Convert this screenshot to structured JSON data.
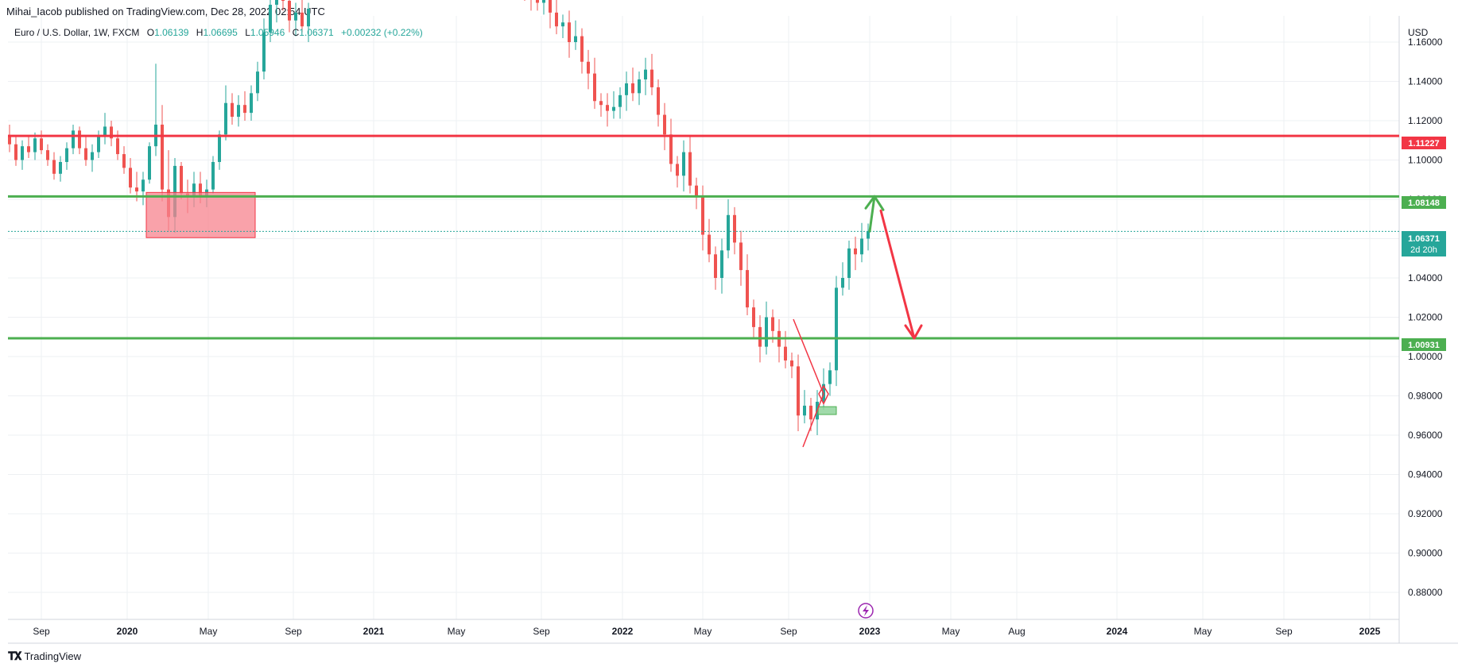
{
  "header": {
    "published": "Mihai_Iacob published on TradingView.com, Dec 28, 2022 02:54 UTC"
  },
  "legend": {
    "symbol": "Euro / U.S. Dollar, 1W, FXCM",
    "o_label": "O",
    "o": "1.06139",
    "h_label": "H",
    "h": "1.06695",
    "l_label": "L",
    "l": "1.05946",
    "c_label": "C",
    "c": "1.06371",
    "change": "+0.00232 (+0.22%)"
  },
  "axis": {
    "currency": "USD",
    "y_ticks": [
      "1.16000",
      "1.14000",
      "1.12000",
      "1.10000",
      "1.08000",
      "1.06000",
      "1.04000",
      "1.02000",
      "1.00000",
      "0.98000",
      "0.96000",
      "0.94000",
      "0.92000",
      "0.90000",
      "0.88000"
    ],
    "x_ticks": [
      "Sep",
      "2020",
      "May",
      "Sep",
      "2021",
      "May",
      "Sep",
      "2022",
      "May",
      "Sep",
      "2023",
      "May",
      "Aug",
      "2024",
      "May",
      "Sep",
      "2025"
    ]
  },
  "price_labels": {
    "red_line": "1.11227",
    "green_top": "1.08148",
    "current": "1.06371",
    "countdown": "2d 20h",
    "green_bottom": "1.00931"
  },
  "colors": {
    "up": "#26a69a",
    "down": "#ef5350",
    "red_line": "#f23645",
    "green_line": "#4caf50",
    "grid": "#eef0f3",
    "text": "#131722"
  },
  "footer": {
    "brand": "TradingView",
    "logo": "tradingview-logo-icon"
  },
  "event_icon": "lightning-icon",
  "chart_data": {
    "type": "candlestick",
    "title": "Euro / U.S. Dollar, 1W, FXCM",
    "ylabel": "USD",
    "ylim": [
      0.87,
      1.17
    ],
    "levels": [
      1.11227,
      1.08148,
      1.00931
    ],
    "current_price": 1.06371,
    "zones": [
      {
        "name": "supply-zone",
        "from": "2020-01",
        "to": "2020-07",
        "price_low": 1.0605,
        "price_high": 1.0835
      },
      {
        "name": "demand-zone",
        "from": "2022-10",
        "to": "2022-11",
        "price_low": 0.9705,
        "price_high": 0.9745
      }
    ],
    "projection": [
      {
        "date": "2022-12",
        "price": 1.0637
      },
      {
        "date": "2023-01",
        "price": 1.0815
      },
      {
        "date": "2023-03",
        "price": 1.0093
      }
    ],
    "candles_weekly": [
      [
        1.112,
        1.118,
        1.104,
        1.108
      ],
      [
        1.108,
        1.112,
        1.097,
        1.1
      ],
      [
        1.1,
        1.11,
        1.095,
        1.107
      ],
      [
        1.107,
        1.112,
        1.101,
        1.104
      ],
      [
        1.104,
        1.114,
        1.1,
        1.111
      ],
      [
        1.111,
        1.115,
        1.103,
        1.105
      ],
      [
        1.105,
        1.108,
        1.097,
        1.1
      ],
      [
        1.1,
        1.104,
        1.09,
        1.093
      ],
      [
        1.093,
        1.102,
        1.089,
        1.099
      ],
      [
        1.099,
        1.109,
        1.095,
        1.106
      ],
      [
        1.106,
        1.118,
        1.103,
        1.115
      ],
      [
        1.115,
        1.117,
        1.103,
        1.106
      ],
      [
        1.106,
        1.112,
        1.097,
        1.1
      ],
      [
        1.1,
        1.108,
        1.094,
        1.104
      ],
      [
        1.104,
        1.115,
        1.101,
        1.112
      ],
      [
        1.112,
        1.124,
        1.108,
        1.117
      ],
      [
        1.117,
        1.12,
        1.107,
        1.111
      ],
      [
        1.111,
        1.115,
        1.1,
        1.103
      ],
      [
        1.103,
        1.107,
        1.093,
        1.096
      ],
      [
        1.096,
        1.101,
        1.083,
        1.086
      ],
      [
        1.086,
        1.094,
        1.079,
        1.084
      ],
      [
        1.084,
        1.094,
        1.077,
        1.09
      ],
      [
        1.09,
        1.109,
        1.088,
        1.107
      ],
      [
        1.107,
        1.149,
        1.102,
        1.118
      ],
      [
        1.118,
        1.128,
        1.079,
        1.085
      ],
      [
        1.085,
        1.105,
        1.064,
        1.071
      ],
      [
        1.071,
        1.101,
        1.063,
        1.097
      ],
      [
        1.097,
        1.099,
        1.08,
        1.083
      ],
      [
        1.083,
        1.09,
        1.073,
        1.082
      ],
      [
        1.082,
        1.094,
        1.076,
        1.088
      ],
      [
        1.088,
        1.094,
        1.078,
        1.081
      ],
      [
        1.081,
        1.09,
        1.076,
        1.085
      ],
      [
        1.085,
        1.102,
        1.083,
        1.099
      ],
      [
        1.099,
        1.115,
        1.095,
        1.113
      ],
      [
        1.113,
        1.138,
        1.11,
        1.129
      ],
      [
        1.129,
        1.134,
        1.118,
        1.122
      ],
      [
        1.122,
        1.133,
        1.117,
        1.128
      ],
      [
        1.128,
        1.135,
        1.12,
        1.124
      ],
      [
        1.124,
        1.138,
        1.12,
        1.134
      ],
      [
        1.134,
        1.15,
        1.13,
        1.145
      ],
      [
        1.145,
        1.172,
        1.141,
        1.165
      ],
      [
        1.165,
        1.188,
        1.16,
        1.179
      ],
      [
        1.179,
        1.19,
        1.17,
        1.184
      ],
      [
        1.184,
        1.196,
        1.176,
        1.181
      ],
      [
        1.181,
        1.186,
        1.165,
        1.171
      ],
      [
        1.171,
        1.18,
        1.163,
        1.175
      ],
      [
        1.175,
        1.185,
        1.165,
        1.168
      ],
      [
        1.168,
        1.18,
        1.16,
        1.177
      ]
    ]
  }
}
